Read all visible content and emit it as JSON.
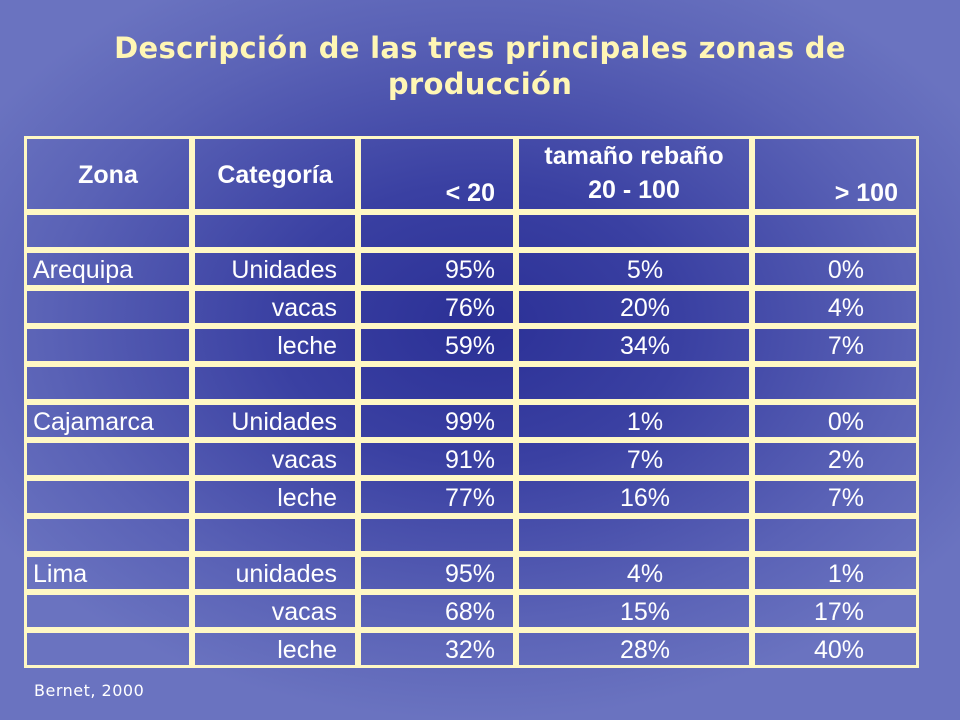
{
  "slide": {
    "title": "Descripción de las tres principales zonas de producción",
    "source": "Bernet, 2000"
  },
  "table": {
    "headers": {
      "zona": "Zona",
      "categoria": "Categoría",
      "group": "tamaño rebaño",
      "col1": "< 20",
      "col2": "20 - 100",
      "col3": "> 100"
    },
    "rows": [
      {
        "zona": "Arequipa",
        "categoria": "Unidades",
        "c1": "95%",
        "c2": "5%",
        "c3": "0%"
      },
      {
        "zona": "",
        "categoria": "vacas",
        "c1": "76%",
        "c2": "20%",
        "c3": "4%"
      },
      {
        "zona": "",
        "categoria": "leche",
        "c1": "59%",
        "c2": "34%",
        "c3": "7%"
      },
      {
        "zona": "Cajamarca",
        "categoria": "Unidades",
        "c1": "99%",
        "c2": "1%",
        "c3": "0%"
      },
      {
        "zona": "",
        "categoria": "vacas",
        "c1": "91%",
        "c2": "7%",
        "c3": "2%"
      },
      {
        "zona": "",
        "categoria": "leche",
        "c1": "77%",
        "c2": "16%",
        "c3": "7%"
      },
      {
        "zona": "Lima",
        "categoria": "unidades",
        "c1": "95%",
        "c2": "4%",
        "c3": "1%"
      },
      {
        "zona": "",
        "categoria": "vacas",
        "c1": "68%",
        "c2": "15%",
        "c3": "17%"
      },
      {
        "zona": "",
        "categoria": "leche",
        "c1": "32%",
        "c2": "28%",
        "c3": "40%"
      }
    ]
  },
  "colors": {
    "title": "#fff6b5",
    "border": "#fff8c4",
    "text": "#ffffff",
    "background": "#3a40a2"
  }
}
